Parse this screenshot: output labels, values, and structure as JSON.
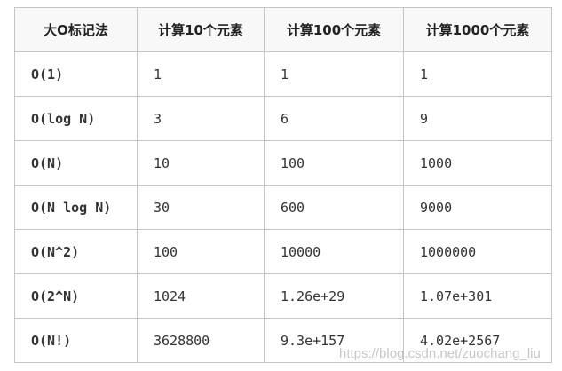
{
  "table": {
    "headers": [
      "大O标记法",
      "计算10个元素",
      "计算100个元素",
      "计算1000个元素"
    ],
    "rows": [
      [
        "O(1)",
        "1",
        "1",
        "1"
      ],
      [
        "O(log N)",
        "3",
        "6",
        "9"
      ],
      [
        "O(N)",
        "10",
        "100",
        "1000"
      ],
      [
        "O(N log N)",
        "30",
        "600",
        "9000"
      ],
      [
        "O(N^2)",
        "100",
        "10000",
        "1000000"
      ],
      [
        "O(2^N)",
        "1024",
        "1.26e+29",
        "1.07e+301"
      ],
      [
        "O(N!)",
        "3628800",
        "9.3e+157",
        "4.02e+2567"
      ]
    ]
  },
  "watermark": "https://blog.csdn.net/zuochang_liu"
}
